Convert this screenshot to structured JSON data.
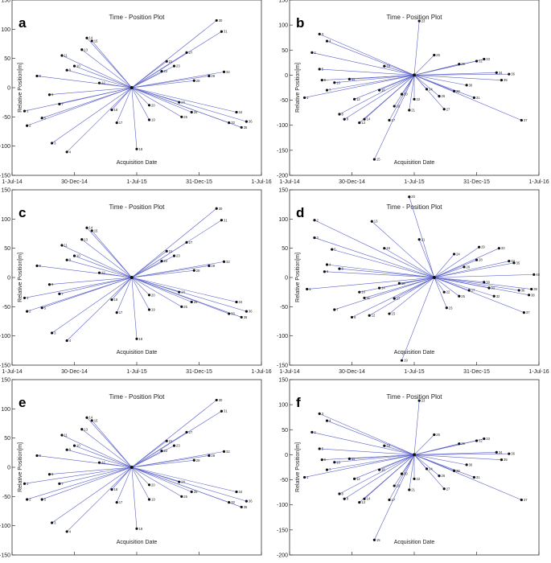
{
  "figure": {
    "panel_title": "Time - Position Plot",
    "xlabel": "Acquisition Date",
    "ylabel": "Relative Position[m]",
    "x_ticks": [
      "1-Jul-14",
      "30-Dec-14",
      "1-Jul-15",
      "31-Dec-15",
      "1-Jul-16"
    ],
    "y_ticks": [
      150,
      100,
      50,
      0,
      -50,
      -100,
      -150,
      -200
    ]
  },
  "chart_data": [
    {
      "panel": "a",
      "type": "scatter",
      "title": "Time - Position Plot",
      "xlabel": "Acquisition Date",
      "ylabel": "Relative Position[m]",
      "ylim": [
        -150,
        150
      ],
      "y_ticks": [
        150,
        100,
        50,
        0,
        -50,
        -100,
        -150
      ],
      "x_ticks": [
        "1-Jul-14",
        "30-Dec-14",
        "1-Jul-15",
        "31-Dec-15",
        "1-Jul-16"
      ],
      "center_xfrac": 0.48,
      "lines_to_center": true,
      "points": [
        [
          0.05,
          -40,
          "1"
        ],
        [
          0.06,
          -65,
          "2"
        ],
        [
          0.16,
          -95,
          "3"
        ],
        [
          0.22,
          -110,
          "4"
        ],
        [
          0.12,
          -52,
          "5"
        ],
        [
          0.15,
          -12,
          "6"
        ],
        [
          0.19,
          -28,
          "7"
        ],
        [
          0.1,
          20,
          "8"
        ],
        [
          0.22,
          30,
          "9"
        ],
        [
          0.25,
          37,
          "10"
        ],
        [
          0.2,
          55,
          "11"
        ],
        [
          0.35,
          8,
          "12"
        ],
        [
          0.28,
          65,
          "13"
        ],
        [
          0.3,
          85,
          "14"
        ],
        [
          0.32,
          80,
          "15"
        ],
        [
          0.4,
          -38,
          "16"
        ],
        [
          0.42,
          -60,
          "17"
        ],
        [
          0.5,
          -105,
          "18"
        ],
        [
          0.55,
          -55,
          "19"
        ],
        [
          0.55,
          -30,
          "20"
        ],
        [
          0.62,
          45,
          "21"
        ],
        [
          0.6,
          28,
          "22"
        ],
        [
          0.65,
          37,
          "23"
        ],
        [
          0.67,
          -25,
          "24"
        ],
        [
          0.68,
          -50,
          "25"
        ],
        [
          0.72,
          -42,
          "26"
        ],
        [
          0.7,
          60,
          "27"
        ],
        [
          0.73,
          12,
          "28"
        ],
        [
          0.79,
          20,
          "29"
        ],
        [
          0.82,
          115,
          "30"
        ],
        [
          0.84,
          96,
          "31"
        ],
        [
          0.85,
          27,
          "32"
        ],
        [
          0.87,
          -60,
          "33"
        ],
        [
          0.9,
          -42,
          "34"
        ],
        [
          0.92,
          -68,
          "35"
        ],
        [
          0.94,
          -58,
          "36"
        ]
      ]
    },
    {
      "panel": "b",
      "type": "scatter",
      "title": "Time - Position Plot",
      "xlabel": "Acquisition Date",
      "ylabel": "Relative Position[m]",
      "ylim": [
        -200,
        150
      ],
      "y_ticks": [
        150,
        100,
        50,
        0,
        -50,
        -100,
        -150,
        -200
      ],
      "x_ticks": [
        "1-Jul-14",
        "30-Dec-14",
        "1-Jul-15",
        "31-Dec-15",
        "1-Jul-16"
      ],
      "center_xfrac": 0.5,
      "lines_to_center": true,
      "points": [
        [
          0.06,
          -45,
          "1"
        ],
        [
          0.09,
          45,
          "2"
        ],
        [
          0.12,
          82,
          "3"
        ],
        [
          0.15,
          68,
          "4"
        ],
        [
          0.12,
          12,
          "5"
        ],
        [
          0.13,
          -10,
          "6"
        ],
        [
          0.15,
          -30,
          "7"
        ],
        [
          0.2,
          -78,
          "8"
        ],
        [
          0.22,
          -88,
          "9"
        ],
        [
          0.18,
          -15,
          "10"
        ],
        [
          0.24,
          -8,
          "11"
        ],
        [
          0.26,
          -48,
          "12"
        ],
        [
          0.28,
          -95,
          "13"
        ],
        [
          0.3,
          -88,
          "14"
        ],
        [
          0.34,
          -168,
          "15"
        ],
        [
          0.36,
          -30,
          "16"
        ],
        [
          0.4,
          -90,
          "17"
        ],
        [
          0.42,
          -62,
          "18"
        ],
        [
          0.38,
          18,
          "19"
        ],
        [
          0.45,
          -38,
          "20"
        ],
        [
          0.48,
          -70,
          "21"
        ],
        [
          0.5,
          -48,
          "22"
        ],
        [
          0.52,
          108,
          "23"
        ],
        [
          0.55,
          -28,
          "24"
        ],
        [
          0.58,
          40,
          "25"
        ],
        [
          0.6,
          -42,
          "26"
        ],
        [
          0.62,
          -68,
          "27"
        ],
        [
          0.66,
          -32,
          "28"
        ],
        [
          0.68,
          22,
          "29"
        ],
        [
          0.71,
          -20,
          "30"
        ],
        [
          0.74,
          -45,
          "31"
        ],
        [
          0.75,
          28,
          "32"
        ],
        [
          0.78,
          32,
          "33"
        ],
        [
          0.83,
          5,
          "34"
        ],
        [
          0.85,
          -10,
          "35"
        ],
        [
          0.88,
          2,
          "36"
        ],
        [
          0.93,
          -90,
          "37"
        ]
      ]
    },
    {
      "panel": "c",
      "type": "scatter",
      "title": "Time - Position Plot",
      "xlabel": "Acquisition Date",
      "ylabel": "Relative Position[m]",
      "ylim": [
        -150,
        150
      ],
      "y_ticks": [
        150,
        100,
        50,
        0,
        -50,
        -100,
        -150
      ],
      "x_ticks": [
        "1-Jul-14",
        "30-Dec-14",
        "1-Jul-15",
        "31-Dec-15",
        "1-Jul-16"
      ],
      "center_xfrac": 0.48,
      "lines_to_center": true,
      "points": [
        [
          0.05,
          -35,
          "1"
        ],
        [
          0.06,
          -58,
          "2"
        ],
        [
          0.16,
          -95,
          "3"
        ],
        [
          0.22,
          -108,
          "4"
        ],
        [
          0.12,
          -52,
          "5"
        ],
        [
          0.15,
          -12,
          "6"
        ],
        [
          0.19,
          -28,
          "7"
        ],
        [
          0.1,
          20,
          "8"
        ],
        [
          0.22,
          30,
          "9"
        ],
        [
          0.25,
          37,
          "10"
        ],
        [
          0.2,
          55,
          "11"
        ],
        [
          0.35,
          8,
          "12"
        ],
        [
          0.28,
          65,
          "13"
        ],
        [
          0.3,
          85,
          "14"
        ],
        [
          0.32,
          80,
          "15"
        ],
        [
          0.4,
          -38,
          "16"
        ],
        [
          0.42,
          -60,
          "17"
        ],
        [
          0.5,
          -105,
          "18"
        ],
        [
          0.55,
          -55,
          "19"
        ],
        [
          0.55,
          -30,
          "20"
        ],
        [
          0.62,
          45,
          "21"
        ],
        [
          0.6,
          28,
          "22"
        ],
        [
          0.65,
          37,
          "23"
        ],
        [
          0.67,
          -25,
          "24"
        ],
        [
          0.68,
          -50,
          "25"
        ],
        [
          0.72,
          -42,
          "26"
        ],
        [
          0.7,
          60,
          "27"
        ],
        [
          0.73,
          12,
          "28"
        ],
        [
          0.79,
          20,
          "29"
        ],
        [
          0.82,
          118,
          "30"
        ],
        [
          0.84,
          98,
          "31"
        ],
        [
          0.85,
          27,
          "32"
        ],
        [
          0.87,
          -62,
          "33"
        ],
        [
          0.9,
          -42,
          "34"
        ],
        [
          0.92,
          -68,
          "35"
        ],
        [
          0.94,
          -58,
          "36"
        ]
      ]
    },
    {
      "panel": "d",
      "type": "scatter",
      "title": "Time - Position Plot",
      "xlabel": "Acquisition Date",
      "ylabel": "Relative Position[m]",
      "ylim": [
        -150,
        150
      ],
      "y_ticks": [
        150,
        100,
        50,
        0,
        -50,
        -100,
        -150
      ],
      "x_ticks": [
        "1-Jul-14",
        "30-Dec-14",
        "1-Jul-15",
        "31-Dec-15",
        "1-Jul-16"
      ],
      "center_xfrac": 0.58,
      "lines_to_center": true,
      "points": [
        [
          0.07,
          -20,
          "1"
        ],
        [
          0.1,
          98,
          "2"
        ],
        [
          0.1,
          68,
          "3"
        ],
        [
          0.15,
          22,
          "4"
        ],
        [
          0.17,
          48,
          "5"
        ],
        [
          0.14,
          10,
          "6"
        ],
        [
          0.18,
          -55,
          "7"
        ],
        [
          0.2,
          15,
          "8"
        ],
        [
          0.25,
          -68,
          "9"
        ],
        [
          0.28,
          -25,
          "10"
        ],
        [
          0.3,
          -35,
          "11"
        ],
        [
          0.32,
          -65,
          "12"
        ],
        [
          0.33,
          96,
          "13"
        ],
        [
          0.36,
          -18,
          "14"
        ],
        [
          0.4,
          -62,
          "15"
        ],
        [
          0.38,
          50,
          "16"
        ],
        [
          0.42,
          -36,
          "17"
        ],
        [
          0.44,
          -10,
          "18"
        ],
        [
          0.45,
          -142,
          "19"
        ],
        [
          0.48,
          138,
          "20"
        ],
        [
          0.52,
          65,
          "21"
        ],
        [
          0.62,
          -25,
          "22"
        ],
        [
          0.63,
          -52,
          "23"
        ],
        [
          0.66,
          40,
          "24"
        ],
        [
          0.68,
          -32,
          "25"
        ],
        [
          0.7,
          18,
          "26"
        ],
        [
          0.72,
          -22,
          "27"
        ],
        [
          0.75,
          30,
          "28"
        ],
        [
          0.76,
          52,
          "29"
        ],
        [
          0.78,
          -8,
          "30"
        ],
        [
          0.8,
          -18,
          "31"
        ],
        [
          0.82,
          -32,
          "32"
        ],
        [
          0.84,
          50,
          "33"
        ],
        [
          0.88,
          28,
          "34"
        ],
        [
          0.9,
          25,
          "35"
        ],
        [
          0.92,
          -22,
          "36"
        ],
        [
          0.94,
          -60,
          "37"
        ],
        [
          0.96,
          -30,
          "38"
        ],
        [
          0.97,
          -20,
          "39"
        ],
        [
          0.98,
          5,
          "40"
        ]
      ]
    },
    {
      "panel": "e",
      "type": "scatter",
      "title": "Time - Position Plot",
      "xlabel": "Acquisition Date",
      "ylabel": "Relative Position[m]",
      "ylim": [
        -150,
        150
      ],
      "y_ticks": [
        150,
        100,
        50,
        0,
        -50,
        -100,
        -150
      ],
      "x_ticks": [
        "1-Jul-14",
        "30-Dec-14",
        "1-Jul-15",
        "31-Dec-15",
        "1-Jul-16"
      ],
      "center_xfrac": 0.48,
      "lines_to_center": true,
      "points": [
        [
          0.05,
          -28,
          "1"
        ],
        [
          0.06,
          -55,
          "2"
        ],
        [
          0.16,
          -95,
          "3"
        ],
        [
          0.22,
          -110,
          "4"
        ],
        [
          0.12,
          -55,
          "5"
        ],
        [
          0.15,
          -12,
          "6"
        ],
        [
          0.19,
          -28,
          "7"
        ],
        [
          0.1,
          20,
          "8"
        ],
        [
          0.22,
          30,
          "9"
        ],
        [
          0.25,
          37,
          "10"
        ],
        [
          0.2,
          55,
          "11"
        ],
        [
          0.35,
          8,
          "12"
        ],
        [
          0.28,
          65,
          "13"
        ],
        [
          0.3,
          85,
          "14"
        ],
        [
          0.32,
          80,
          "15"
        ],
        [
          0.4,
          -38,
          "16"
        ],
        [
          0.42,
          -60,
          "17"
        ],
        [
          0.5,
          -105,
          "18"
        ],
        [
          0.55,
          -55,
          "19"
        ],
        [
          0.55,
          -30,
          "20"
        ],
        [
          0.62,
          45,
          "21"
        ],
        [
          0.6,
          28,
          "22"
        ],
        [
          0.65,
          37,
          "23"
        ],
        [
          0.67,
          -25,
          "24"
        ],
        [
          0.68,
          -50,
          "25"
        ],
        [
          0.72,
          -42,
          "26"
        ],
        [
          0.7,
          60,
          "27"
        ],
        [
          0.73,
          12,
          "28"
        ],
        [
          0.79,
          20,
          "29"
        ],
        [
          0.82,
          115,
          "30"
        ],
        [
          0.84,
          96,
          "31"
        ],
        [
          0.85,
          27,
          "32"
        ],
        [
          0.87,
          -60,
          "33"
        ],
        [
          0.9,
          -42,
          "34"
        ],
        [
          0.92,
          -68,
          "35"
        ],
        [
          0.94,
          -58,
          "36"
        ]
      ]
    },
    {
      "panel": "f",
      "type": "scatter",
      "title": "Time - Position Plot",
      "xlabel": "Acquisition Date",
      "ylabel": "Relative Position[m]",
      "ylim": [
        -200,
        150
      ],
      "y_ticks": [
        150,
        100,
        50,
        0,
        -50,
        -100,
        -150,
        -200
      ],
      "x_ticks": [
        "1-Jul-14",
        "30-Dec-14",
        "1-Jul-15",
        "31-Dec-15",
        "1-Jul-16"
      ],
      "center_xfrac": 0.5,
      "lines_to_center": true,
      "points": [
        [
          0.06,
          -45,
          "1"
        ],
        [
          0.09,
          45,
          "2"
        ],
        [
          0.12,
          82,
          "3"
        ],
        [
          0.15,
          68,
          "4"
        ],
        [
          0.12,
          12,
          "5"
        ],
        [
          0.13,
          -10,
          "6"
        ],
        [
          0.15,
          -30,
          "7"
        ],
        [
          0.2,
          -78,
          "8"
        ],
        [
          0.22,
          -88,
          "9"
        ],
        [
          0.18,
          -15,
          "10"
        ],
        [
          0.24,
          -8,
          "11"
        ],
        [
          0.26,
          -48,
          "12"
        ],
        [
          0.28,
          -95,
          "13"
        ],
        [
          0.3,
          -88,
          "14"
        ],
        [
          0.34,
          -170,
          "15"
        ],
        [
          0.36,
          -30,
          "16"
        ],
        [
          0.4,
          -90,
          "17"
        ],
        [
          0.42,
          -62,
          "18"
        ],
        [
          0.38,
          18,
          "19"
        ],
        [
          0.45,
          -38,
          "20"
        ],
        [
          0.48,
          -70,
          "21"
        ],
        [
          0.5,
          -48,
          "22"
        ],
        [
          0.52,
          108,
          "23"
        ],
        [
          0.55,
          -28,
          "24"
        ],
        [
          0.58,
          40,
          "25"
        ],
        [
          0.6,
          -42,
          "26"
        ],
        [
          0.62,
          -68,
          "27"
        ],
        [
          0.66,
          -32,
          "28"
        ],
        [
          0.68,
          22,
          "29"
        ],
        [
          0.71,
          -20,
          "30"
        ],
        [
          0.74,
          -45,
          "31"
        ],
        [
          0.75,
          28,
          "32"
        ],
        [
          0.78,
          32,
          "33"
        ],
        [
          0.83,
          5,
          "34"
        ],
        [
          0.85,
          -10,
          "35"
        ],
        [
          0.88,
          2,
          "36"
        ],
        [
          0.93,
          -90,
          "37"
        ]
      ]
    }
  ]
}
